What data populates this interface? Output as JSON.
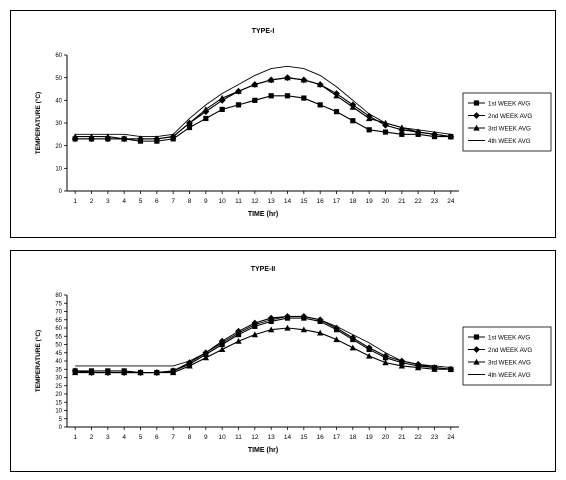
{
  "chart_data": [
    {
      "type": "line",
      "title": "TYPE-I",
      "xlabel": "TIME (hr)",
      "ylabel": "TEMPERATURE (°C)",
      "x": [
        1,
        2,
        3,
        4,
        5,
        6,
        7,
        8,
        9,
        10,
        11,
        12,
        13,
        14,
        15,
        16,
        17,
        18,
        19,
        20,
        21,
        22,
        23,
        24
      ],
      "xticks": [
        "1",
        "2",
        "3",
        "4",
        "5",
        "6",
        "7",
        "8",
        "9",
        "10",
        "11",
        "12",
        "13",
        "14",
        "15",
        "16",
        "17",
        "18",
        "19",
        "20",
        "21",
        "22",
        "23",
        "24"
      ],
      "ylim": [
        0,
        60
      ],
      "yticks": [
        "0",
        "10",
        "20",
        "30",
        "40",
        "50",
        "60"
      ],
      "legend_position": "right",
      "series": [
        {
          "name": "1st WEEK AVG",
          "marker": "square",
          "values": [
            23,
            23,
            23,
            23,
            22,
            22,
            23,
            28,
            32,
            36,
            38,
            40,
            42,
            42,
            41,
            38,
            35,
            31,
            27,
            26,
            25,
            25,
            24,
            24
          ]
        },
        {
          "name": "2nd WEEK AVG",
          "marker": "diamond",
          "values": [
            23,
            23,
            23,
            23,
            23,
            23,
            24,
            30,
            35,
            40,
            44,
            47,
            49,
            50,
            49,
            47,
            43,
            38,
            33,
            29,
            27,
            26,
            25,
            24
          ]
        },
        {
          "name": "3rd WEEK AVG",
          "marker": "triangle",
          "values": [
            24,
            24,
            24,
            23,
            23,
            23,
            24,
            30,
            36,
            41,
            44,
            47,
            49,
            50,
            49,
            47,
            42,
            37,
            32,
            30,
            28,
            26,
            25,
            24
          ]
        },
        {
          "name": "4th WEEK AVG",
          "marker": "none",
          "values": [
            25,
            25,
            25,
            25,
            24,
            24,
            25,
            32,
            38,
            43,
            47,
            51,
            54,
            55,
            54,
            51,
            46,
            40,
            34,
            30,
            28,
            27,
            26,
            25
          ]
        }
      ]
    },
    {
      "type": "line",
      "title": "TYPE-II",
      "xlabel": "TIME (hr)",
      "ylabel": "TEMPERATURE (°C)",
      "x": [
        1,
        2,
        3,
        4,
        5,
        6,
        7,
        8,
        9,
        10,
        11,
        12,
        13,
        14,
        15,
        16,
        17,
        18,
        19,
        20,
        21,
        22,
        23,
        24
      ],
      "xticks": [
        "1",
        "2",
        "3",
        "4",
        "5",
        "6",
        "7",
        "8",
        "9",
        "10",
        "11",
        "12",
        "13",
        "14",
        "15",
        "16",
        "17",
        "18",
        "19",
        "20",
        "21",
        "22",
        "23",
        "24"
      ],
      "ylim": [
        0,
        80
      ],
      "yticks": [
        "0",
        "5",
        "10",
        "15",
        "20",
        "25",
        "30",
        "35",
        "40",
        "45",
        "50",
        "55",
        "60",
        "65",
        "70",
        "75",
        "80"
      ],
      "legend_position": "right",
      "series": [
        {
          "name": "1st WEEK AVG",
          "marker": "square",
          "values": [
            34,
            34,
            34,
            34,
            33,
            33,
            34,
            38,
            44,
            50,
            56,
            61,
            64,
            66,
            66,
            64,
            59,
            53,
            47,
            42,
            39,
            37,
            36,
            35
          ]
        },
        {
          "name": "2nd WEEK AVG",
          "marker": "diamond",
          "values": [
            34,
            33,
            33,
            33,
            33,
            33,
            34,
            39,
            45,
            52,
            58,
            63,
            66,
            67,
            67,
            65,
            60,
            54,
            48,
            43,
            40,
            38,
            36,
            35
          ]
        },
        {
          "name": "3rd WEEK AVG",
          "marker": "triangle",
          "values": [
            33,
            33,
            33,
            33,
            33,
            33,
            33,
            37,
            42,
            47,
            52,
            56,
            59,
            60,
            59,
            57,
            53,
            48,
            43,
            39,
            37,
            36,
            35,
            35
          ]
        },
        {
          "name": "4th WEEK AVG",
          "marker": "none",
          "values": [
            37,
            37,
            37,
            37,
            37,
            37,
            37,
            40,
            45,
            51,
            57,
            62,
            65,
            67,
            67,
            65,
            61,
            56,
            51,
            45,
            40,
            38,
            37,
            36
          ]
        }
      ]
    }
  ]
}
